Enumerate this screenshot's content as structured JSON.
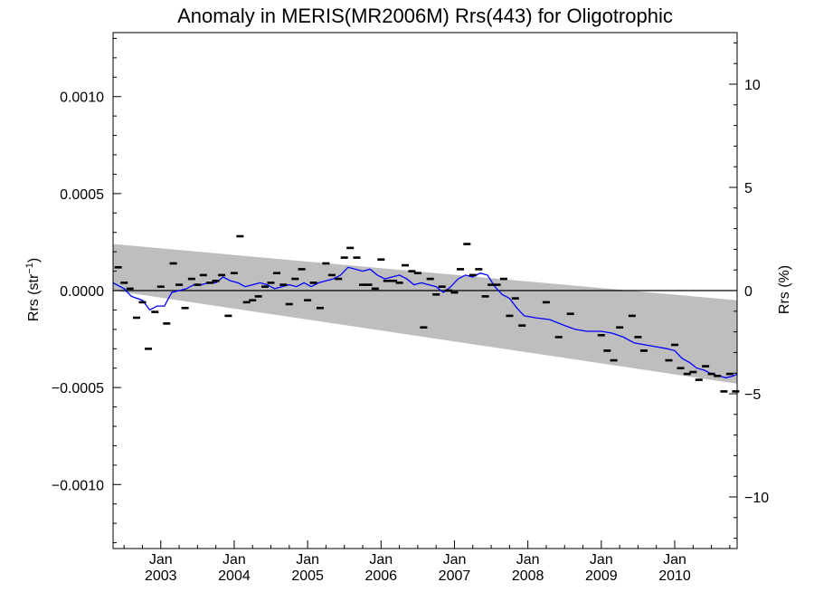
{
  "chart_data": {
    "type": "scatter",
    "title": "Anomaly in MERIS(MR2006M) Rrs(443) for Oligotrophic",
    "ylabel_left_main": "Rrs (str",
    "ylabel_left_sup": "−1",
    "ylabel_left_close": ")",
    "ylabel_right": "Rrs (%)",
    "xlim": [
      2002.35,
      2010.85
    ],
    "ylim": [
      -0.00133,
      0.00133
    ],
    "ylim_right": [
      -12.5,
      12.5
    ],
    "yticks_left": [
      {
        "value": 0.001,
        "label": "0.0010"
      },
      {
        "value": 0.0005,
        "label": "0.0005"
      },
      {
        "value": 0.0,
        "label": "0.0000"
      },
      {
        "value": -0.0005,
        "label": "−0.0005"
      },
      {
        "value": -0.001,
        "label": "−0.0010"
      }
    ],
    "yticks_right": [
      {
        "value": 10,
        "label": "10"
      },
      {
        "value": 5,
        "label": "5"
      },
      {
        "value": 0,
        "label": "0"
      },
      {
        "value": -5,
        "label": "−5"
      },
      {
        "value": -10,
        "label": "−10"
      }
    ],
    "xticks": [
      {
        "value": 2003.0,
        "month": "Jan",
        "year": "2003"
      },
      {
        "value": 2004.0,
        "month": "Jan",
        "year": "2004"
      },
      {
        "value": 2005.0,
        "month": "Jan",
        "year": "2005"
      },
      {
        "value": 2006.0,
        "month": "Jan",
        "year": "2006"
      },
      {
        "value": 2007.0,
        "month": "Jan",
        "year": "2007"
      },
      {
        "value": 2008.0,
        "month": "Jan",
        "year": "2008"
      },
      {
        "value": 2009.0,
        "month": "Jan",
        "year": "2009"
      },
      {
        "value": 2010.0,
        "month": "Jan",
        "year": "2010"
      }
    ],
    "zero_line": 0,
    "grid": false,
    "colors": {
      "band": "#bebebe",
      "running_mean": "#0000ff",
      "points": "#000000",
      "axes": "#000000"
    },
    "uncertainty_band": {
      "x": [
        2002.35,
        2010.85
      ],
      "upper": [
        0.00024,
        -5e-05
      ],
      "lower": [
        0.0,
        -0.00048
      ]
    },
    "points": {
      "x": [
        2002.42,
        2002.5,
        2002.58,
        2002.67,
        2002.75,
        2002.83,
        2002.92,
        2003.0,
        2003.08,
        2003.17,
        2003.25,
        2003.33,
        2003.42,
        2003.5,
        2003.58,
        2003.67,
        2003.75,
        2003.83,
        2003.92,
        2004.0,
        2004.08,
        2004.17,
        2004.25,
        2004.33,
        2004.42,
        2004.5,
        2004.58,
        2004.67,
        2004.75,
        2004.83,
        2004.92,
        2005.0,
        2005.08,
        2005.17,
        2005.25,
        2005.33,
        2005.42,
        2005.5,
        2005.58,
        2005.67,
        2005.75,
        2005.83,
        2005.92,
        2006.0,
        2006.08,
        2006.17,
        2006.25,
        2006.33,
        2006.42,
        2006.5,
        2006.58,
        2006.67,
        2006.75,
        2006.83,
        2006.92,
        2007.0,
        2007.08,
        2007.17,
        2007.25,
        2007.33,
        2007.42,
        2007.5,
        2007.58,
        2007.67,
        2007.75,
        2007.83,
        2007.92,
        2008.25,
        2008.42,
        2008.58,
        2009.0,
        2009.08,
        2009.17,
        2009.25,
        2009.42,
        2009.5,
        2009.58,
        2009.92,
        2010.0,
        2010.08,
        2010.17,
        2010.25,
        2010.33,
        2010.42,
        2010.5,
        2010.58,
        2010.67,
        2010.75,
        2010.83
      ],
      "y": [
        0.00012,
        4e-05,
        1e-05,
        -0.00014,
        -6e-05,
        -0.0003,
        -0.00011,
        2e-05,
        -0.00017,
        0.00014,
        3e-05,
        -9e-05,
        6e-05,
        3e-05,
        8e-05,
        4e-05,
        5e-05,
        8e-05,
        -0.00013,
        9e-05,
        0.00028,
        -6e-05,
        -5e-05,
        -3e-05,
        2e-05,
        4e-05,
        9e-05,
        3e-05,
        -7e-05,
        6e-05,
        0.00011,
        -5e-05,
        4e-05,
        -9e-05,
        0.00014,
        8e-05,
        6e-05,
        0.00017,
        0.00022,
        0.00017,
        3e-05,
        3e-05,
        1e-05,
        0.00016,
        5e-05,
        5e-05,
        4e-05,
        0.00013,
        0.0001,
        9e-05,
        -0.00019,
        6e-05,
        -2e-05,
        2e-05,
        0.0,
        -1e-05,
        0.00011,
        0.00024,
        8e-05,
        0.00011,
        -3e-05,
        3e-05,
        3e-05,
        6e-05,
        -0.00013,
        -4e-05,
        -0.00018,
        -6e-05,
        -0.00024,
        -0.00012,
        -0.00023,
        -0.00031,
        -0.00036,
        -0.00019,
        -0.00013,
        -0.00024,
        -0.00031,
        -0.00036,
        -0.00028,
        -0.0004,
        -0.00043,
        -0.00042,
        -0.00046,
        -0.00039,
        -0.00043,
        -0.00044,
        -0.00052,
        -0.00043,
        -0.00052
      ]
    },
    "running_mean": {
      "x": [
        2002.35,
        2002.5,
        2002.6,
        2002.75,
        2002.85,
        2002.95,
        2003.05,
        2003.15,
        2003.25,
        2003.35,
        2003.45,
        2003.55,
        2003.65,
        2003.75,
        2003.85,
        2003.95,
        2004.05,
        2004.15,
        2004.25,
        2004.35,
        2004.45,
        2004.55,
        2004.65,
        2004.75,
        2004.85,
        2004.95,
        2005.05,
        2005.15,
        2005.25,
        2005.35,
        2005.45,
        2005.55,
        2005.65,
        2005.75,
        2005.85,
        2005.95,
        2006.05,
        2006.15,
        2006.25,
        2006.35,
        2006.45,
        2006.55,
        2006.65,
        2006.75,
        2006.85,
        2006.95,
        2007.05,
        2007.15,
        2007.25,
        2007.35,
        2007.45,
        2007.55,
        2007.65,
        2007.75,
        2007.85,
        2007.95,
        2008.1,
        2008.3,
        2008.5,
        2008.65,
        2008.8,
        2009.0,
        2009.15,
        2009.3,
        2009.45,
        2009.6,
        2009.75,
        2009.9,
        2010.0,
        2010.1,
        2010.2,
        2010.3,
        2010.4,
        2010.5,
        2010.6,
        2010.7,
        2010.8,
        2010.85
      ],
      "y": [
        4e-05,
        1e-05,
        -3e-05,
        -5e-05,
        -0.0001,
        -8e-05,
        -8e-05,
        -1e-05,
        0.0,
        1e-05,
        3e-05,
        3e-05,
        4e-05,
        4e-05,
        7e-05,
        5e-05,
        4e-05,
        2e-05,
        3e-05,
        4e-05,
        3e-05,
        1e-05,
        2e-05,
        3e-05,
        2e-05,
        4e-05,
        2e-05,
        4e-05,
        5e-05,
        6e-05,
        8e-05,
        0.00012,
        0.00011,
        0.0001,
        0.00011,
        8e-05,
        6e-05,
        7e-05,
        8e-05,
        6e-05,
        3e-05,
        4e-05,
        3e-05,
        2e-05,
        -1e-05,
        2e-05,
        6e-05,
        8e-05,
        7e-05,
        9e-05,
        8e-05,
        2e-05,
        -2e-05,
        -4e-05,
        -9e-05,
        -0.00013,
        -0.00014,
        -0.00015,
        -0.00018,
        -0.0002,
        -0.00021,
        -0.00021,
        -0.00022,
        -0.00024,
        -0.00027,
        -0.00028,
        -0.00029,
        -0.0003,
        -0.00031,
        -0.00035,
        -0.00037,
        -0.0004,
        -0.00041,
        -0.00043,
        -0.00044,
        -0.00045,
        -0.00044,
        -0.00043
      ]
    }
  }
}
